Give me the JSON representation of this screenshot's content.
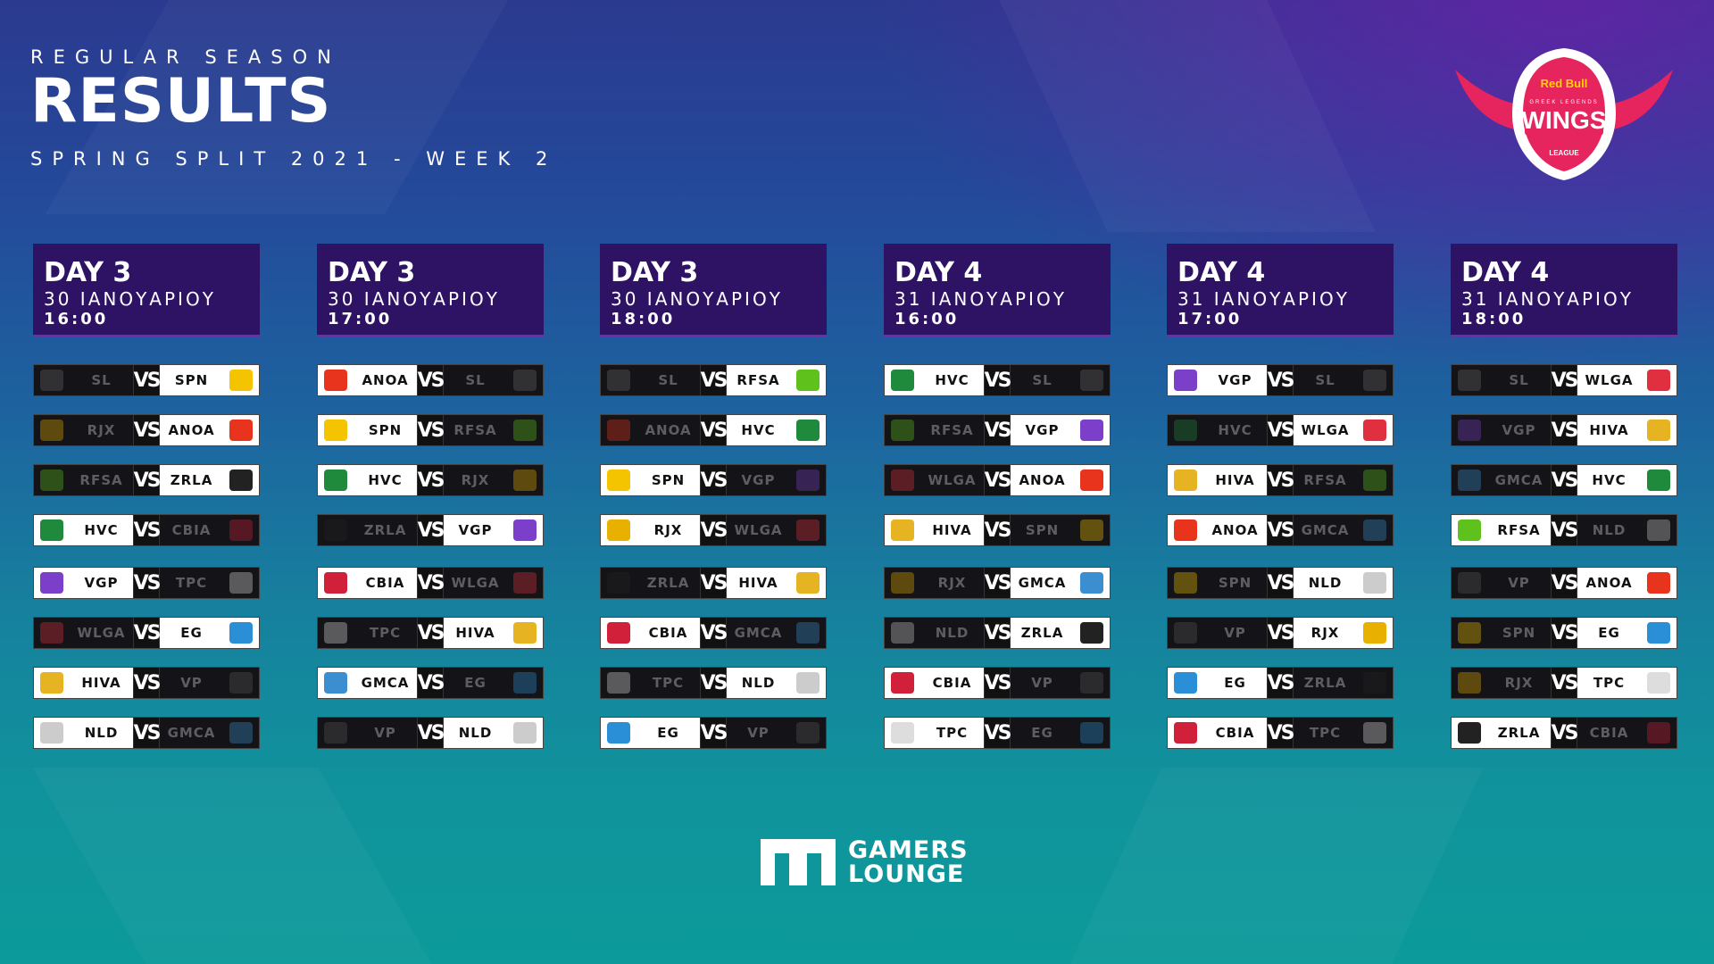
{
  "header": {
    "kicker": "REGULAR SEASON",
    "title": "RESULTS",
    "subtitle": "SPRING SPLIT 2021 - WEEK 2"
  },
  "logo": {
    "brand": "Red Bull",
    "small": "GREEK LEGENDS",
    "name": "WINGS",
    "league": "LEAGUE"
  },
  "footer": {
    "line1": "GAMERS",
    "line2": "LOUNGE"
  },
  "vs_label": "VS",
  "team_colors": {
    "SL": "#666666",
    "SPN": "#f5c400",
    "RJX": "#e8b000",
    "ANOA": "#e8331d",
    "RFSA": "#5fc21c",
    "ZRLA": "#222222",
    "HVC": "#1f8a3c",
    "CBIA": "#d0203a",
    "VGP": "#7b3fc9",
    "TPC": "#dddddd",
    "WLGA": "#e0303f",
    "EG": "#2a8fd6",
    "HIVA": "#e6b422",
    "VP": "#555555",
    "NLD": "#cccccc",
    "GMCA": "#3b8fd0"
  },
  "columns": [
    {
      "day": "DAY 3",
      "date": "30 ΙΑΝΟΥΑΡΙΟΥ",
      "time": "16:00",
      "matches": [
        {
          "left": "SL",
          "right": "SPN",
          "winner": "right"
        },
        {
          "left": "RJX",
          "right": "ANOA",
          "winner": "right"
        },
        {
          "left": "RFSA",
          "right": "ZRLA",
          "winner": "right"
        },
        {
          "left": "HVC",
          "right": "CBIA",
          "winner": "left"
        },
        {
          "left": "VGP",
          "right": "TPC",
          "winner": "left"
        },
        {
          "left": "WLGA",
          "right": "EG",
          "winner": "right"
        },
        {
          "left": "HIVA",
          "right": "VP",
          "winner": "left"
        },
        {
          "left": "NLD",
          "right": "GMCA",
          "winner": "left"
        }
      ]
    },
    {
      "day": "DAY 3",
      "date": "30 ΙΑΝΟΥΑΡΙΟΥ",
      "time": "17:00",
      "matches": [
        {
          "left": "ANOA",
          "right": "SL",
          "winner": "left"
        },
        {
          "left": "SPN",
          "right": "RFSA",
          "winner": "left"
        },
        {
          "left": "HVC",
          "right": "RJX",
          "winner": "left"
        },
        {
          "left": "ZRLA",
          "right": "VGP",
          "winner": "right"
        },
        {
          "left": "CBIA",
          "right": "WLGA",
          "winner": "left"
        },
        {
          "left": "TPC",
          "right": "HIVA",
          "winner": "right"
        },
        {
          "left": "GMCA",
          "right": "EG",
          "winner": "left"
        },
        {
          "left": "VP",
          "right": "NLD",
          "winner": "right"
        }
      ]
    },
    {
      "day": "DAY 3",
      "date": "30 ΙΑΝΟΥΑΡΙΟΥ",
      "time": "18:00",
      "matches": [
        {
          "left": "SL",
          "right": "RFSA",
          "winner": "right"
        },
        {
          "left": "ANOA",
          "right": "HVC",
          "winner": "right"
        },
        {
          "left": "SPN",
          "right": "VGP",
          "winner": "left"
        },
        {
          "left": "RJX",
          "right": "WLGA",
          "winner": "left"
        },
        {
          "left": "ZRLA",
          "right": "HIVA",
          "winner": "right"
        },
        {
          "left": "CBIA",
          "right": "GMCA",
          "winner": "left"
        },
        {
          "left": "TPC",
          "right": "NLD",
          "winner": "right"
        },
        {
          "left": "EG",
          "right": "VP",
          "winner": "left"
        }
      ]
    },
    {
      "day": "DAY 4",
      "date": "31 ΙΑΝΟΥΑΡΙΟΥ",
      "time": "16:00",
      "matches": [
        {
          "left": "HVC",
          "right": "SL",
          "winner": "left"
        },
        {
          "left": "RFSA",
          "right": "VGP",
          "winner": "right"
        },
        {
          "left": "WLGA",
          "right": "ANOA",
          "winner": "right"
        },
        {
          "left": "HIVA",
          "right": "SPN",
          "winner": "left"
        },
        {
          "left": "RJX",
          "right": "GMCA",
          "winner": "right"
        },
        {
          "left": "NLD",
          "right": "ZRLA",
          "winner": "right"
        },
        {
          "left": "CBIA",
          "right": "VP",
          "winner": "left"
        },
        {
          "left": "TPC",
          "right": "EG",
          "winner": "left"
        }
      ]
    },
    {
      "day": "DAY 4",
      "date": "31 ΙΑΝΟΥΑΡΙΟΥ",
      "time": "17:00",
      "matches": [
        {
          "left": "VGP",
          "right": "SL",
          "winner": "left"
        },
        {
          "left": "HVC",
          "right": "WLGA",
          "winner": "right"
        },
        {
          "left": "HIVA",
          "right": "RFSA",
          "winner": "left"
        },
        {
          "left": "ANOA",
          "right": "GMCA",
          "winner": "left"
        },
        {
          "left": "SPN",
          "right": "NLD",
          "winner": "right"
        },
        {
          "left": "VP",
          "right": "RJX",
          "winner": "right"
        },
        {
          "left": "EG",
          "right": "ZRLA",
          "winner": "left"
        },
        {
          "left": "CBIA",
          "right": "TPC",
          "winner": "left"
        }
      ]
    },
    {
      "day": "DAY 4",
      "date": "31 ΙΑΝΟΥΑΡΙΟΥ",
      "time": "18:00",
      "matches": [
        {
          "left": "SL",
          "right": "WLGA",
          "winner": "right"
        },
        {
          "left": "VGP",
          "right": "HIVA",
          "winner": "right"
        },
        {
          "left": "GMCA",
          "right": "HVC",
          "winner": "right"
        },
        {
          "left": "RFSA",
          "right": "NLD",
          "winner": "left"
        },
        {
          "left": "VP",
          "right": "ANOA",
          "winner": "right"
        },
        {
          "left": "SPN",
          "right": "EG",
          "winner": "right"
        },
        {
          "left": "RJX",
          "right": "TPC",
          "winner": "right"
        },
        {
          "left": "ZRLA",
          "right": "CBIA",
          "winner": "left"
        }
      ]
    }
  ]
}
